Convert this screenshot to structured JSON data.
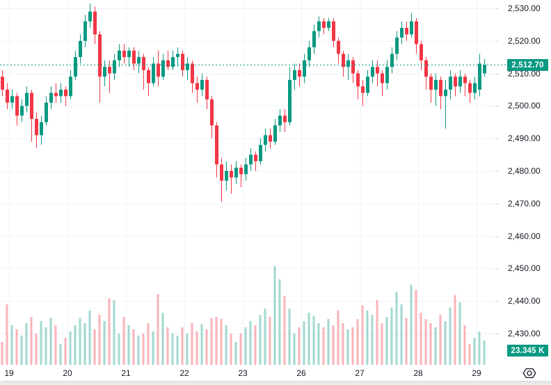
{
  "chart": {
    "last_price_label": "2,512.70",
    "last_volume_label": "23.345 K",
    "colors": {
      "up": "#089981",
      "down": "#f23645",
      "volume_up": "rgba(8,153,129,0.38)",
      "volume_down": "rgba(242,54,69,0.38)",
      "grid": "#f0f3fa",
      "axis_text": "#131722",
      "badge_bg": "#089981",
      "dotted_line": "#089981"
    }
  },
  "chart_data": {
    "type": "candlestick",
    "title": "",
    "legend_position": "none",
    "grid": true,
    "price_axis": {
      "side": "right",
      "ticks": [
        {
          "value": 2530,
          "label": "2,530.00"
        },
        {
          "value": 2520,
          "label": "2,520.00"
        },
        {
          "value": 2510,
          "label": "2,510.00"
        },
        {
          "value": 2500,
          "label": "2,500.00"
        },
        {
          "value": 2490,
          "label": "2,490.00"
        },
        {
          "value": 2480,
          "label": "2,480.00"
        },
        {
          "value": 2470,
          "label": "2,470.00"
        },
        {
          "value": 2460,
          "label": "2,460.00"
        },
        {
          "value": 2450,
          "label": "2,450.00"
        },
        {
          "value": 2440,
          "label": "2,440.00"
        },
        {
          "value": 2430,
          "label": "2,430.00"
        }
      ],
      "visible_range": [
        2427,
        2532.5
      ]
    },
    "time_axis": {
      "labels": [
        "19",
        "20",
        "21",
        "22",
        "23",
        "26",
        "27",
        "28",
        "29"
      ]
    },
    "last_price": 2512.7,
    "last_volume_k": 23.345,
    "dotted_line_price": 2512.7,
    "candles_ohlc": [
      [
        2509,
        2511,
        2503,
        2505
      ],
      [
        2505,
        2507,
        2499,
        2501
      ],
      [
        2501,
        2505,
        2499,
        2503
      ],
      [
        2503,
        2504,
        2494,
        2497
      ],
      [
        2497,
        2502,
        2495,
        2500
      ],
      [
        2500,
        2506,
        2498,
        2504
      ],
      [
        2504,
        2505,
        2489,
        2496
      ],
      [
        2496,
        2498,
        2487,
        2491
      ],
      [
        2491,
        2497,
        2488,
        2495
      ],
      [
        2495,
        2503,
        2494,
        2501
      ],
      [
        2501,
        2506,
        2499,
        2504
      ],
      [
        2504,
        2507,
        2501,
        2503
      ],
      [
        2503,
        2507,
        2501,
        2505
      ],
      [
        2505,
        2506,
        2500,
        2503
      ],
      [
        2503,
        2511,
        2502,
        2509
      ],
      [
        2509,
        2517,
        2508,
        2515
      ],
      [
        2515,
        2522,
        2513,
        2520
      ],
      [
        2520,
        2528,
        2518,
        2526
      ],
      [
        2526,
        2531.5,
        2524,
        2529
      ],
      [
        2529,
        2530.5,
        2519,
        2522
      ],
      [
        2522,
        2523,
        2501,
        2509
      ],
      [
        2509,
        2514,
        2506,
        2512
      ],
      [
        2512,
        2514,
        2504,
        2510
      ],
      [
        2510,
        2516,
        2508,
        2514
      ],
      [
        2514,
        2519,
        2512,
        2517
      ],
      [
        2517,
        2519,
        2513,
        2515
      ],
      [
        2515,
        2518,
        2512,
        2517
      ],
      [
        2517,
        2518,
        2511,
        2513
      ],
      [
        2513,
        2517,
        2510,
        2515
      ],
      [
        2515,
        2516,
        2505,
        2511
      ],
      [
        2511,
        2512,
        2503,
        2507
      ],
      [
        2507,
        2515,
        2506,
        2513
      ],
      [
        2513,
        2517,
        2506,
        2509
      ],
      [
        2509,
        2516,
        2508,
        2514
      ],
      [
        2514,
        2517,
        2511,
        2512
      ],
      [
        2512,
        2517,
        2511,
        2515
      ],
      [
        2515,
        2518,
        2512,
        2516
      ],
      [
        2516,
        2517,
        2509,
        2511
      ],
      [
        2511,
        2515,
        2508,
        2513
      ],
      [
        2513,
        2514,
        2504,
        2507
      ],
      [
        2507,
        2509,
        2501,
        2505
      ],
      [
        2505,
        2510,
        2503,
        2508
      ],
      [
        2508,
        2509,
        2499,
        2502
      ],
      [
        2502,
        2503,
        2490,
        2494
      ],
      [
        2494,
        2495,
        2478,
        2482
      ],
      [
        2482,
        2484,
        2470.5,
        2477
      ],
      [
        2477,
        2483,
        2474,
        2480
      ],
      [
        2480,
        2482,
        2473,
        2478
      ],
      [
        2478,
        2483,
        2476,
        2481
      ],
      [
        2481,
        2482,
        2475,
        2479
      ],
      [
        2479,
        2484,
        2477,
        2482
      ],
      [
        2482,
        2487,
        2480,
        2485
      ],
      [
        2485,
        2486,
        2480,
        2483
      ],
      [
        2483,
        2490,
        2482,
        2488
      ],
      [
        2488,
        2493,
        2486,
        2491
      ],
      [
        2491,
        2493,
        2487,
        2489
      ],
      [
        2489,
        2496,
        2488,
        2494
      ],
      [
        2494,
        2499,
        2492,
        2497
      ],
      [
        2497,
        2499,
        2492,
        2495
      ],
      [
        2495,
        2512,
        2494,
        2508
      ],
      [
        2508,
        2513,
        2505,
        2511
      ],
      [
        2511,
        2513,
        2506,
        2509
      ],
      [
        2509,
        2516,
        2507,
        2514
      ],
      [
        2514,
        2520,
        2512,
        2518
      ],
      [
        2518,
        2525,
        2516,
        2523
      ],
      [
        2523,
        2527.5,
        2521,
        2526
      ],
      [
        2526,
        2527,
        2522,
        2524
      ],
      [
        2524,
        2527,
        2523,
        2526
      ],
      [
        2526,
        2527,
        2518,
        2520
      ],
      [
        2520,
        2521,
        2513,
        2516
      ],
      [
        2516,
        2517,
        2509,
        2512
      ],
      [
        2512,
        2516,
        2508,
        2514
      ],
      [
        2514,
        2515,
        2507,
        2510
      ],
      [
        2510,
        2511,
        2502,
        2506
      ],
      [
        2506,
        2508,
        2500,
        2504
      ],
      [
        2504,
        2511,
        2503,
        2509
      ],
      [
        2509,
        2514,
        2507,
        2512
      ],
      [
        2512,
        2514,
        2506,
        2510
      ],
      [
        2510,
        2511,
        2503,
        2507
      ],
      [
        2507,
        2514,
        2505,
        2512
      ],
      [
        2512,
        2518,
        2510,
        2516
      ],
      [
        2516,
        2523,
        2514,
        2521
      ],
      [
        2521,
        2526,
        2519,
        2524
      ],
      [
        2524,
        2526,
        2520,
        2522
      ],
      [
        2522,
        2528.5,
        2521,
        2526
      ],
      [
        2526,
        2527,
        2516,
        2519
      ],
      [
        2519,
        2520,
        2511,
        2514
      ],
      [
        2514,
        2515,
        2505,
        2509
      ],
      [
        2509,
        2510,
        2501,
        2505
      ],
      [
        2505,
        2510,
        2500,
        2508
      ],
      [
        2508,
        2509,
        2499,
        2503
      ],
      [
        2503,
        2508,
        2493,
        2505
      ],
      [
        2505,
        2511,
        2502,
        2509
      ],
      [
        2509,
        2510,
        2503,
        2506
      ],
      [
        2506,
        2511,
        2504,
        2509
      ],
      [
        2509,
        2510,
        2503,
        2507
      ],
      [
        2507,
        2508,
        2501,
        2504
      ],
      [
        2504,
        2509,
        2502,
        2507
      ],
      [
        2505,
        2516,
        2503,
        2513
      ],
      [
        2510,
        2514.5,
        2509,
        2512.7
      ]
    ],
    "volumes_k": [
      22,
      58,
      38,
      34,
      28,
      40,
      46,
      30,
      42,
      36,
      45,
      38,
      20,
      26,
      32,
      38,
      45,
      40,
      52,
      34,
      48,
      42,
      64,
      62,
      30,
      46,
      38,
      34,
      28,
      30,
      40,
      32,
      68,
      50,
      36,
      30,
      28,
      36,
      30,
      40,
      32,
      39,
      34,
      45,
      46,
      44,
      38,
      30,
      22,
      30,
      36,
      42,
      38,
      48,
      54,
      46,
      95,
      82,
      66,
      54,
      30,
      36,
      42,
      50,
      47,
      40,
      36,
      44,
      38,
      52,
      40,
      34,
      36,
      44,
      57,
      52,
      48,
      62,
      40,
      46,
      55,
      70,
      58,
      45,
      77,
      72,
      50,
      44,
      40,
      36,
      48,
      42,
      55,
      67,
      60,
      38,
      20,
      26,
      32,
      23.345
    ]
  }
}
